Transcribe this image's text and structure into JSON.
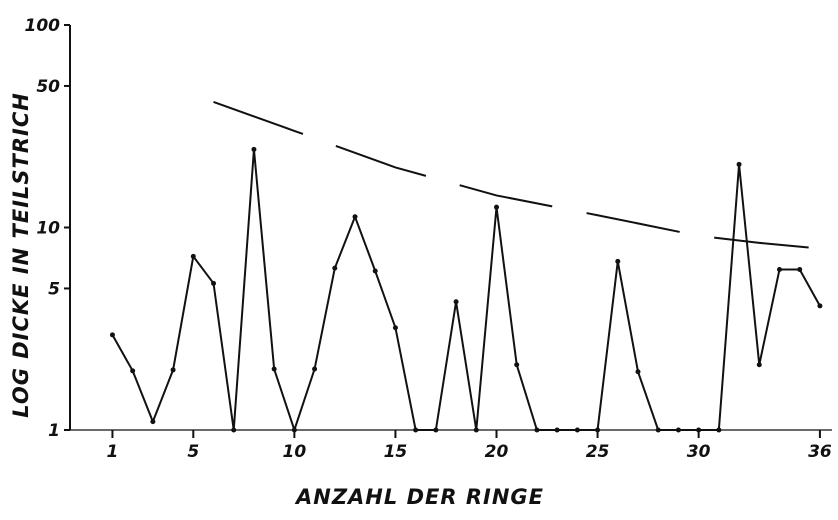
{
  "chart_data": {
    "type": "line",
    "xlabel": "ANZAHL DER RINGE",
    "ylabel": "LOG DICKE IN TEILSTRICH",
    "log_y": true,
    "xlim": [
      -1.1,
      36.4
    ],
    "xticks": [
      1,
      5,
      10,
      15,
      20,
      25,
      30,
      36
    ],
    "ylim": [
      1,
      100
    ],
    "yticks": [
      1,
      5,
      10,
      50,
      100
    ],
    "series": [
      {
        "color": "#111111",
        "style": "solid",
        "markers": true,
        "x": [
          1,
          2,
          3,
          4,
          5,
          6,
          7,
          8,
          9,
          10,
          11,
          12,
          13,
          14,
          15,
          16,
          17,
          18,
          19,
          20,
          21,
          22,
          23,
          24,
          25,
          26,
          27,
          28,
          29,
          30,
          31,
          32,
          33,
          34,
          35,
          36
        ],
        "values": [
          2.95,
          1.96,
          1.1,
          1.98,
          7.2,
          5.3,
          1,
          24.3,
          2.0,
          1,
          2.0,
          6.3,
          11.3,
          6.1,
          3.2,
          1,
          1,
          4.3,
          1,
          12.6,
          2.1,
          1,
          1,
          1,
          1,
          6.8,
          1.94,
          1,
          1,
          1,
          1,
          20.5,
          2.1,
          6.2,
          6.2,
          4.1
        ]
      },
      {
        "color": "#111111",
        "style": "dashed",
        "markers": false,
        "x": [
          6,
          10,
          15,
          20,
          25,
          30,
          33,
          36.4
        ],
        "values": [
          41.7,
          30,
          19.8,
          14.4,
          11.5,
          9.1,
          8.4,
          7.8
        ]
      }
    ]
  }
}
